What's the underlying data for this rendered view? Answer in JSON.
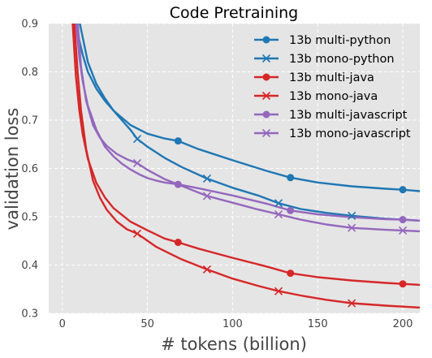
{
  "chart_data": {
    "type": "line",
    "title": "Code Pretraining",
    "xlabel": "# tokens (billion)",
    "ylabel": "validation loss",
    "xlim": [
      -8,
      210
    ],
    "ylim": [
      0.3,
      0.9
    ],
    "xticks": [
      0,
      50,
      100,
      150,
      200
    ],
    "yticks": [
      0.3,
      0.4,
      0.5,
      0.6,
      0.7,
      0.8,
      0.9
    ],
    "grid": true,
    "legend_position": "top-right",
    "series": [
      {
        "name": "13b multi-python",
        "color": "#1f77b4",
        "marker": "circle",
        "x": [
          8,
          10,
          12,
          15,
          20,
          25,
          30,
          40,
          50,
          60,
          68,
          80,
          100,
          120,
          134,
          150,
          170,
          190,
          200,
          210
        ],
        "y": [
          0.905,
          0.865,
          0.835,
          0.8,
          0.765,
          0.74,
          0.72,
          0.69,
          0.672,
          0.662,
          0.657,
          0.64,
          0.617,
          0.595,
          0.581,
          0.571,
          0.563,
          0.558,
          0.556,
          0.553
        ],
        "marker_x": [
          68,
          134,
          200
        ]
      },
      {
        "name": "13b mono-python",
        "color": "#1f77b4",
        "marker": "x",
        "x": [
          10,
          15,
          20,
          25,
          30,
          35,
          40,
          44,
          50,
          60,
          70,
          85,
          100,
          115,
          127,
          140,
          155,
          170,
          190,
          210
        ],
        "y": [
          0.905,
          0.82,
          0.775,
          0.745,
          0.72,
          0.7,
          0.68,
          0.661,
          0.645,
          0.622,
          0.603,
          0.579,
          0.56,
          0.544,
          0.528,
          0.516,
          0.508,
          0.502,
          0.496,
          0.492
        ],
        "marker_x": [
          44,
          85,
          127,
          170
        ]
      },
      {
        "name": "13b multi-java",
        "color": "#d62728",
        "marker": "circle",
        "x": [
          6,
          8,
          10,
          12,
          15,
          20,
          25,
          30,
          40,
          50,
          60,
          68,
          80,
          100,
          120,
          134,
          150,
          170,
          190,
          200,
          210
        ],
        "y": [
          0.905,
          0.79,
          0.72,
          0.67,
          0.62,
          0.57,
          0.54,
          0.518,
          0.49,
          0.472,
          0.455,
          0.447,
          0.434,
          0.415,
          0.397,
          0.383,
          0.375,
          0.368,
          0.363,
          0.361,
          0.359
        ],
        "marker_x": [
          68,
          134,
          200
        ]
      },
      {
        "name": "13b mono-java",
        "color": "#d62728",
        "marker": "x",
        "x": [
          7,
          9,
          11,
          14,
          18,
          22,
          26,
          32,
          38,
          44,
          55,
          70,
          85,
          100,
          115,
          127,
          140,
          155,
          170,
          190,
          210
        ],
        "y": [
          0.905,
          0.8,
          0.72,
          0.64,
          0.575,
          0.54,
          0.515,
          0.49,
          0.474,
          0.465,
          0.438,
          0.412,
          0.391,
          0.372,
          0.357,
          0.346,
          0.337,
          0.328,
          0.321,
          0.316,
          0.312
        ],
        "marker_x": [
          44,
          85,
          127,
          170
        ]
      },
      {
        "name": "13b multi-javascript",
        "color": "#9467bd",
        "marker": "circle",
        "x": [
          8,
          10,
          12,
          15,
          20,
          25,
          30,
          35,
          40,
          45,
          50,
          55,
          60,
          68,
          80,
          100,
          120,
          134,
          150,
          170,
          190,
          200,
          210
        ],
        "y": [
          0.905,
          0.83,
          0.78,
          0.73,
          0.68,
          0.645,
          0.625,
          0.61,
          0.598,
          0.588,
          0.58,
          0.575,
          0.571,
          0.567,
          0.559,
          0.544,
          0.527,
          0.513,
          0.505,
          0.499,
          0.495,
          0.494,
          0.492
        ],
        "marker_x": [
          68,
          134,
          200
        ]
      },
      {
        "name": "13b mono-javascript",
        "color": "#9467bd",
        "marker": "x",
        "x": [
          9,
          11,
          14,
          18,
          22,
          26,
          32,
          38,
          44,
          50,
          60,
          70,
          85,
          100,
          115,
          127,
          140,
          155,
          170,
          190,
          210
        ],
        "y": [
          0.905,
          0.81,
          0.74,
          0.69,
          0.664,
          0.647,
          0.63,
          0.619,
          0.611,
          0.597,
          0.578,
          0.564,
          0.543,
          0.529,
          0.515,
          0.505,
          0.494,
          0.484,
          0.477,
          0.473,
          0.47
        ],
        "marker_x": [
          44,
          85,
          127,
          170,
          200
        ]
      }
    ]
  }
}
